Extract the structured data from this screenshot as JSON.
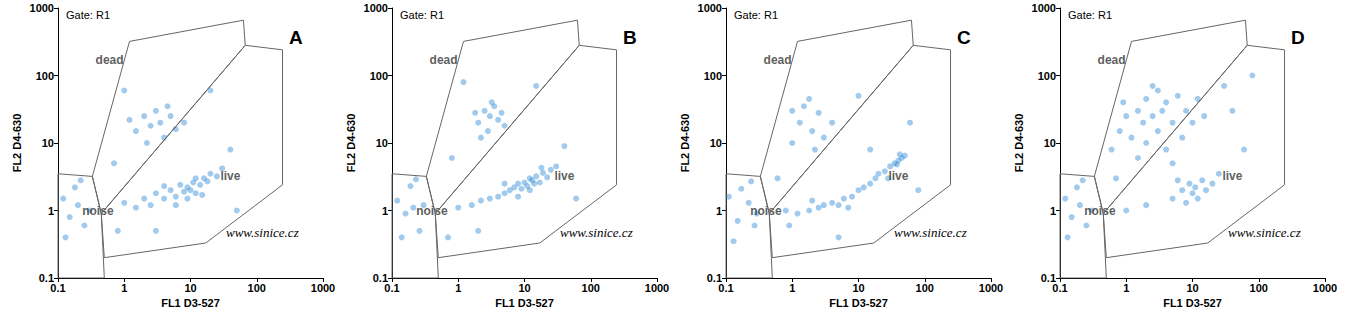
{
  "chart_data": [
    {
      "type": "scatter",
      "title": "A",
      "gate": "Gate: R1",
      "watermark": "www.sinice.cz",
      "x_label": "FL1 D3-527",
      "y_label": "FL2 D4-630",
      "log": true,
      "grid": false,
      "color": "#2f8ad8",
      "xlim": [
        0.1,
        1000
      ],
      "ylim": [
        0.1,
        1000
      ],
      "xticks": [
        0.1,
        1,
        10,
        100,
        1000
      ],
      "yticks": [
        0.1,
        1,
        10,
        100,
        1000
      ],
      "x": [
        0.12,
        0.15,
        0.18,
        0.2,
        0.25,
        0.13,
        0.22,
        0.3,
        1,
        1.5,
        2,
        2.5,
        3,
        4,
        5,
        6,
        7,
        8,
        9,
        10,
        11,
        12,
        14,
        16,
        18,
        20,
        25,
        30,
        6,
        9,
        12,
        4,
        15,
        1.5,
        2,
        2.5,
        3,
        3.5,
        4,
        5,
        6,
        2.2,
        1.2,
        8,
        4.5,
        0.7,
        40,
        50,
        0.8,
        20,
        3,
        1
      ],
      "values": [
        1.5,
        0.8,
        2.2,
        1.2,
        0.6,
        0.4,
        2.8,
        1.0,
        1.3,
        1.1,
        1.5,
        1.2,
        1.8,
        1.5,
        2,
        1.6,
        2.4,
        1.9,
        2.2,
        2,
        2.6,
        1.8,
        2.4,
        3,
        2.7,
        3.5,
        3.2,
        4.2,
        1.2,
        1.5,
        3,
        2.3,
        1.7,
        15,
        25,
        18,
        30,
        20,
        12,
        25,
        16,
        10,
        22,
        20,
        35,
        5,
        8,
        1,
        0.5,
        60,
        0.5,
        60
      ],
      "gates": [
        {
          "label": "dead",
          "label_at": [
            0.6,
            170
          ],
          "points": [
            [
              0.45,
              0.9
            ],
            [
              0.33,
              3.2
            ],
            [
              1.2,
              320
            ],
            [
              63,
              660
            ],
            [
              67,
              280
            ],
            [
              0.45,
              0.9
            ]
          ]
        },
        {
          "label": "live",
          "label_at": [
            40,
            3.2
          ],
          "points": [
            [
              0.45,
              0.9
            ],
            [
              67,
              280
            ],
            [
              245,
              240
            ],
            [
              245,
              2.4
            ],
            [
              17,
              0.33
            ],
            [
              0.5,
              0.2
            ],
            [
              0.45,
              0.9
            ]
          ]
        },
        {
          "label": "noise",
          "label_at": [
            0.4,
            1
          ],
          "points": [
            [
              0.1,
              3.5
            ],
            [
              0.33,
              3.2
            ],
            [
              0.45,
              0.9
            ],
            [
              0.5,
              0.1
            ],
            [
              0.1,
              0.1
            ],
            [
              0.1,
              3.5
            ]
          ]
        }
      ]
    },
    {
      "type": "scatter",
      "title": "B",
      "gate": "Gate: R1",
      "watermark": "www.sinice.cz",
      "x_label": "FL1 D3-527",
      "y_label": "FL2 D4-630",
      "log": true,
      "grid": false,
      "color": "#2f8ad8",
      "xlim": [
        0.1,
        1000
      ],
      "ylim": [
        0.1,
        1000
      ],
      "xticks": [
        0.1,
        1,
        10,
        100,
        1000
      ],
      "yticks": [
        0.1,
        1,
        10,
        100,
        1000
      ],
      "x": [
        0.12,
        0.16,
        0.19,
        0.21,
        0.26,
        0.14,
        0.23,
        0.3,
        1,
        1.6,
        2.2,
        3,
        4,
        5,
        6,
        7,
        8,
        9,
        10,
        11,
        12,
        13,
        14,
        15,
        17,
        19,
        22,
        25,
        30,
        8,
        12,
        18,
        5,
        2,
        2.5,
        3,
        3.5,
        4,
        2.8,
        1.8,
        5,
        3.2,
        4.5,
        2.2,
        0.8,
        40,
        60,
        0.7,
        15,
        2,
        1.2
      ],
      "values": [
        1.4,
        0.9,
        2.3,
        1.1,
        0.5,
        0.4,
        2.9,
        1.2,
        1.1,
        1.2,
        1.4,
        1.5,
        1.6,
        1.8,
        2,
        2.2,
        2.5,
        2.1,
        2.6,
        2.3,
        3,
        2.8,
        2.5,
        3.2,
        2.6,
        3.6,
        3.1,
        4,
        4.5,
        1.6,
        2,
        4.3,
        2.5,
        20,
        30,
        25,
        35,
        22,
        15,
        28,
        18,
        40,
        28,
        12,
        6,
        9,
        1.5,
        0.4,
        70,
        0.5,
        80
      ],
      "gates": [
        {
          "label": "dead",
          "label_at": [
            0.6,
            170
          ],
          "points": [
            [
              0.45,
              0.9
            ],
            [
              0.33,
              3.2
            ],
            [
              1.2,
              320
            ],
            [
              63,
              660
            ],
            [
              67,
              280
            ],
            [
              0.45,
              0.9
            ]
          ]
        },
        {
          "label": "live",
          "label_at": [
            40,
            3.2
          ],
          "points": [
            [
              0.45,
              0.9
            ],
            [
              67,
              280
            ],
            [
              245,
              240
            ],
            [
              245,
              2.4
            ],
            [
              17,
              0.33
            ],
            [
              0.5,
              0.2
            ],
            [
              0.45,
              0.9
            ]
          ]
        },
        {
          "label": "noise",
          "label_at": [
            0.4,
            1
          ],
          "points": [
            [
              0.1,
              3.5
            ],
            [
              0.33,
              3.2
            ],
            [
              0.45,
              0.9
            ],
            [
              0.5,
              0.1
            ],
            [
              0.1,
              0.1
            ],
            [
              0.1,
              3.5
            ]
          ]
        }
      ]
    },
    {
      "type": "scatter",
      "title": "C",
      "gate": "Gate: R1",
      "watermark": "www.sinice.cz",
      "x_label": "FL1 D3-527",
      "y_label": "FL2 D4-630",
      "log": true,
      "grid": false,
      "color": "#2f8ad8",
      "xlim": [
        0.1,
        1000
      ],
      "ylim": [
        0.1,
        1000
      ],
      "xticks": [
        0.1,
        1,
        10,
        100,
        1000
      ],
      "yticks": [
        0.1,
        1,
        10,
        100,
        1000
      ],
      "x": [
        0.11,
        0.15,
        0.17,
        0.22,
        0.27,
        0.13,
        0.24,
        0.29,
        0.8,
        1.2,
        1.8,
        2.5,
        3,
        4,
        5,
        6,
        8,
        10,
        12,
        15,
        18,
        20,
        25,
        30,
        35,
        40,
        45,
        50,
        38,
        42,
        28,
        2,
        7,
        1,
        1.3,
        1.5,
        2,
        2.5,
        3,
        1.8,
        2.2,
        4,
        1,
        0.6,
        60,
        5,
        10,
        80,
        0.9,
        15
      ],
      "values": [
        1.6,
        0.7,
        2.1,
        1.3,
        0.6,
        0.35,
        2.7,
        0.9,
        1,
        0.9,
        1,
        1.1,
        1.2,
        1.3,
        1.2,
        1.5,
        1.6,
        2,
        2.2,
        2.5,
        3,
        3.5,
        3.8,
        4.5,
        5,
        5.5,
        6,
        6.5,
        4.8,
        6.8,
        3,
        1.4,
        1.1,
        10,
        20,
        35,
        15,
        28,
        12,
        45,
        8,
        20,
        30,
        3,
        20,
        0.4,
        50,
        2,
        0.6,
        8
      ],
      "gates": [
        {
          "label": "dead",
          "label_at": [
            0.6,
            170
          ],
          "points": [
            [
              0.45,
              0.9
            ],
            [
              0.33,
              3.2
            ],
            [
              1.2,
              320
            ],
            [
              63,
              660
            ],
            [
              67,
              280
            ],
            [
              0.45,
              0.9
            ]
          ]
        },
        {
          "label": "live",
          "label_at": [
            40,
            3.2
          ],
          "points": [
            [
              0.45,
              0.9
            ],
            [
              67,
              280
            ],
            [
              245,
              240
            ],
            [
              245,
              2.4
            ],
            [
              17,
              0.33
            ],
            [
              0.5,
              0.2
            ],
            [
              0.45,
              0.9
            ]
          ]
        },
        {
          "label": "noise",
          "label_at": [
            0.4,
            1
          ],
          "points": [
            [
              0.1,
              3.5
            ],
            [
              0.33,
              3.2
            ],
            [
              0.45,
              0.9
            ],
            [
              0.5,
              0.1
            ],
            [
              0.1,
              0.1
            ],
            [
              0.1,
              3.5
            ]
          ]
        }
      ]
    },
    {
      "type": "scatter",
      "title": "D",
      "gate": "Gate: R1",
      "watermark": "www.sinice.cz",
      "x_label": "FL1 D3-527",
      "y_label": "FL2 D4-630",
      "log": true,
      "grid": false,
      "color": "#2f8ad8",
      "xlim": [
        0.1,
        1000
      ],
      "ylim": [
        0.1,
        1000
      ],
      "xticks": [
        0.1,
        1,
        10,
        100,
        1000
      ],
      "yticks": [
        0.1,
        1,
        10,
        100,
        1000
      ],
      "x": [
        0.12,
        0.15,
        0.18,
        0.2,
        0.25,
        0.13,
        0.22,
        0.3,
        0.6,
        0.8,
        1,
        1.2,
        1.5,
        1.8,
        2,
        2,
        2.5,
        3,
        3,
        3.5,
        4,
        4,
        5,
        6,
        7,
        8,
        10,
        12,
        1.5,
        2.5,
        0.9,
        5,
        15,
        5,
        7,
        8,
        9,
        10,
        11,
        12,
        14,
        16,
        20,
        25,
        6,
        40,
        60,
        1,
        2,
        80,
        0.7,
        30
      ],
      "values": [
        1.5,
        0.8,
        2.2,
        1.2,
        0.6,
        0.4,
        2.8,
        1.0,
        8,
        15,
        25,
        12,
        30,
        20,
        45,
        10,
        25,
        15,
        60,
        30,
        8,
        40,
        20,
        50,
        12,
        30,
        20,
        45,
        6,
        70,
        40,
        5,
        25,
        1.5,
        2,
        1.3,
        2.5,
        1.8,
        2.2,
        1.5,
        2.8,
        2,
        2.5,
        3.5,
        2.8,
        30,
        8,
        1,
        1.2,
        100,
        3,
        70
      ],
      "gates": [
        {
          "label": "dead",
          "label_at": [
            0.6,
            170
          ],
          "points": [
            [
              0.45,
              0.9
            ],
            [
              0.33,
              3.2
            ],
            [
              1.2,
              320
            ],
            [
              63,
              660
            ],
            [
              67,
              280
            ],
            [
              0.45,
              0.9
            ]
          ]
        },
        {
          "label": "live",
          "label_at": [
            40,
            3.2
          ],
          "points": [
            [
              0.45,
              0.9
            ],
            [
              67,
              280
            ],
            [
              245,
              240
            ],
            [
              245,
              2.4
            ],
            [
              17,
              0.33
            ],
            [
              0.5,
              0.2
            ],
            [
              0.45,
              0.9
            ]
          ]
        },
        {
          "label": "noise",
          "label_at": [
            0.4,
            1
          ],
          "points": [
            [
              0.1,
              3.5
            ],
            [
              0.33,
              3.2
            ],
            [
              0.45,
              0.9
            ],
            [
              0.5,
              0.1
            ],
            [
              0.1,
              0.1
            ],
            [
              0.1,
              3.5
            ]
          ]
        }
      ]
    }
  ]
}
